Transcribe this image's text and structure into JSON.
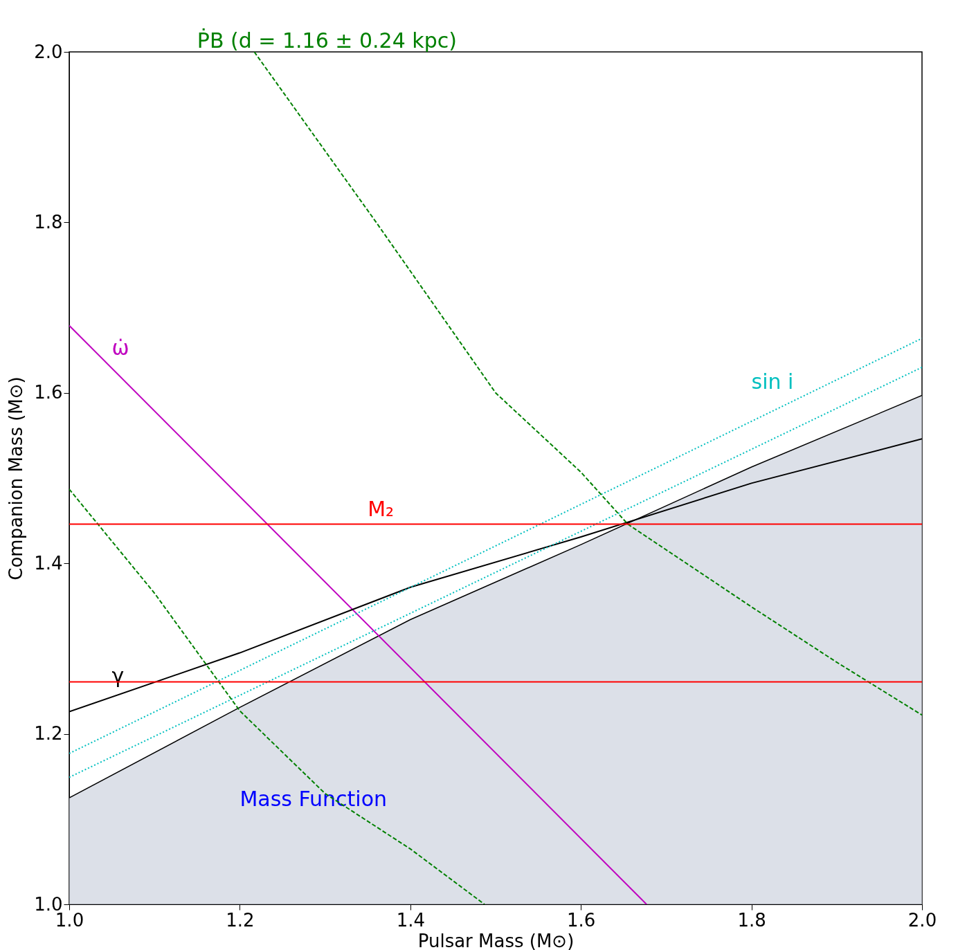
{
  "chart_data": {
    "type": "line",
    "xlabel": "Pulsar Mass (M⊙)",
    "ylabel": "Companion Mass (M⊙)",
    "xlim": [
      1.0,
      2.0
    ],
    "ylim": [
      1.0,
      2.0
    ],
    "xticks": [
      {
        "value": 1,
        "label": "1.0"
      },
      1.2,
      1.4,
      1.6,
      1.8,
      {
        "value": 2,
        "label": "2.0"
      }
    ],
    "yticks": [
      {
        "value": 1,
        "label": "1.0"
      },
      1.2,
      1.4,
      1.6,
      1.8,
      {
        "value": 2,
        "label": "2.0"
      }
    ],
    "grid": false,
    "series": [
      {
        "type": "area",
        "name": "Mass Function",
        "color": "#cdd3de",
        "x": [
          1.0,
          1.2,
          1.4,
          1.6,
          1.8,
          2.0
        ],
        "values": [
          1.125,
          1.231,
          1.334,
          1.422,
          1.513,
          1.597
        ]
      },
      {
        "name": "ω̇",
        "color": "#bf00bf",
        "line_style": "solid",
        "x": [
          1.0,
          1.677
        ],
        "values": [
          1.679,
          1.0
        ]
      },
      {
        "name": "γ",
        "color": "#000000",
        "line_style": "solid",
        "x": [
          1.0,
          1.2,
          1.4,
          1.6,
          1.8,
          2.0
        ],
        "values": [
          1.226,
          1.295,
          1.372,
          1.431,
          1.494,
          1.546
        ]
      },
      {
        "name": "sin i",
        "color": "#00bfbf",
        "line_style": "dotted",
        "x": [
          1.0,
          2.0
        ],
        "values": [
          1.177,
          1.664
        ]
      },
      {
        "color": "#00bfbf",
        "line_style": "dotted",
        "x": [
          1.0,
          2.0
        ],
        "values": [
          1.149,
          1.63
        ]
      },
      {
        "name": "ṖB (d = 1.16 ± 0.24 kpc)",
        "color": "#008000",
        "line_style": "dashed",
        "x": [
          1.217,
          1.36,
          1.5,
          1.6,
          1.655,
          1.8,
          1.9,
          2.0
        ],
        "values": [
          2.0,
          1.8,
          1.6,
          1.507,
          1.446,
          1.349,
          1.284,
          1.222
        ]
      },
      {
        "color": "#008000",
        "line_style": "dashed",
        "x": [
          1.0,
          1.1,
          1.2,
          1.3,
          1.4,
          1.487
        ],
        "values": [
          1.487,
          1.365,
          1.227,
          1.13,
          1.065,
          1.0
        ]
      }
    ],
    "ref_lines": [
      {
        "axis": "y",
        "value": 1.446,
        "color": "#ff0000",
        "label": "M₂"
      },
      {
        "axis": "y",
        "value": 1.261,
        "color": "#ff0000"
      }
    ]
  }
}
